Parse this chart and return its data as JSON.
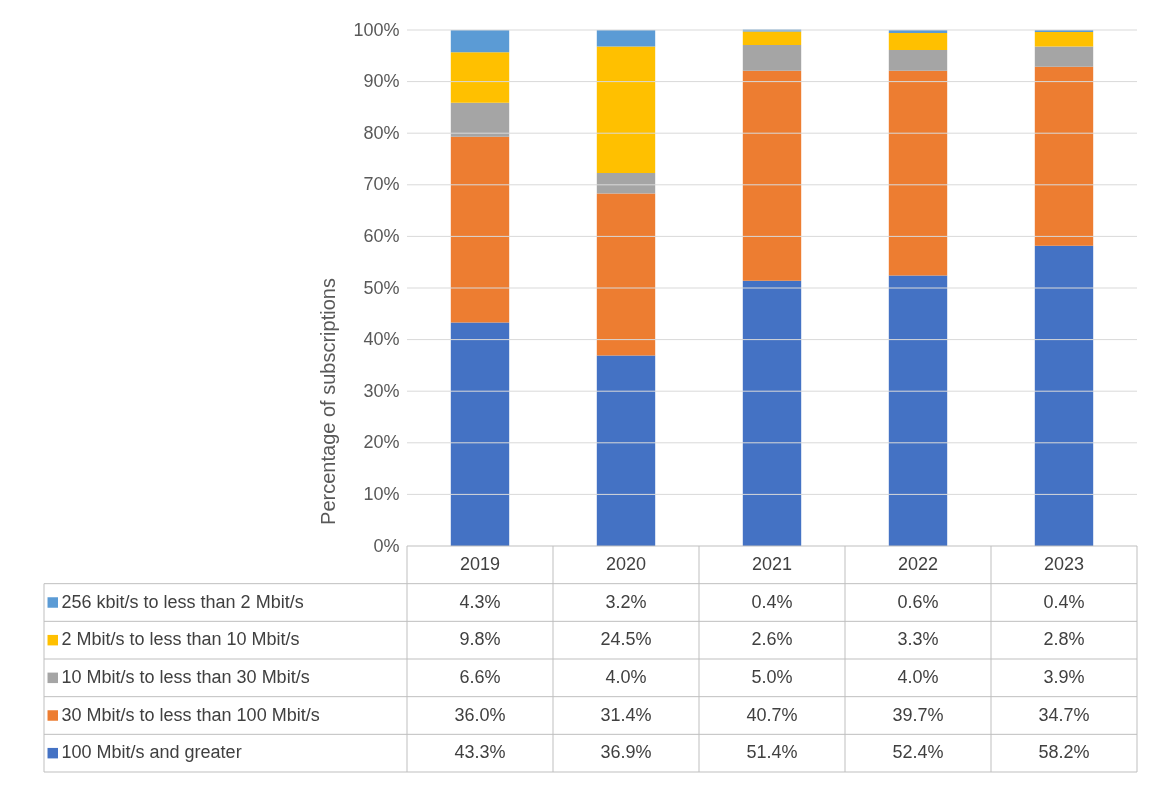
{
  "chart_data": {
    "type": "bar",
    "stacked": true,
    "ylabel": "Percentage of subscriptions",
    "categories": [
      "2019",
      "2020",
      "2021",
      "2022",
      "2023"
    ],
    "series": [
      {
        "name": "100 Mbit/s and greater",
        "color": "#4472c4",
        "values": [
          43.3,
          36.9,
          51.4,
          52.4,
          58.2
        ],
        "value_labels": [
          "43.3%",
          "36.9%",
          "51.4%",
          "52.4%",
          "58.2%"
        ]
      },
      {
        "name": "30 Mbit/s to less than 100 Mbit/s",
        "color": "#ed7d31",
        "values": [
          36.0,
          31.4,
          40.7,
          39.7,
          34.7
        ],
        "value_labels": [
          "36.0%",
          "31.4%",
          "40.7%",
          "39.7%",
          "34.7%"
        ]
      },
      {
        "name": "10 Mbit/s to less than 30 Mbit/s",
        "color": "#a5a5a5",
        "values": [
          6.6,
          4.0,
          5.0,
          4.0,
          3.9
        ],
        "value_labels": [
          "6.6%",
          "4.0%",
          "5.0%",
          "4.0%",
          "3.9%"
        ]
      },
      {
        "name": "2 Mbit/s to less than 10 Mbit/s",
        "color": "#ffc000",
        "values": [
          9.8,
          24.5,
          2.6,
          3.3,
          2.8
        ],
        "value_labels": [
          "9.8%",
          "24.5%",
          "2.6%",
          "3.3%",
          "2.8%"
        ]
      },
      {
        "name": "256 kbit/s to less than 2 Mbit/s",
        "color": "#5b9bd5",
        "values": [
          4.3,
          3.2,
          0.4,
          0.6,
          0.4
        ],
        "value_labels": [
          "4.3%",
          "3.2%",
          "0.4%",
          "0.6%",
          "0.4%"
        ]
      }
    ],
    "ylim": [
      0,
      100
    ],
    "yticks": [
      {
        "value": 0,
        "label": "0%"
      },
      {
        "value": 10,
        "label": "10%"
      },
      {
        "value": 20,
        "label": "20%"
      },
      {
        "value": 30,
        "label": "30%"
      },
      {
        "value": 40,
        "label": "40%"
      },
      {
        "value": 50,
        "label": "50%"
      },
      {
        "value": 60,
        "label": "60%"
      },
      {
        "value": 70,
        "label": "70%"
      },
      {
        "value": 80,
        "label": "80%"
      },
      {
        "value": 90,
        "label": "90%"
      },
      {
        "value": 100,
        "label": "100%"
      }
    ],
    "grid": "y",
    "legend": "bottom"
  }
}
